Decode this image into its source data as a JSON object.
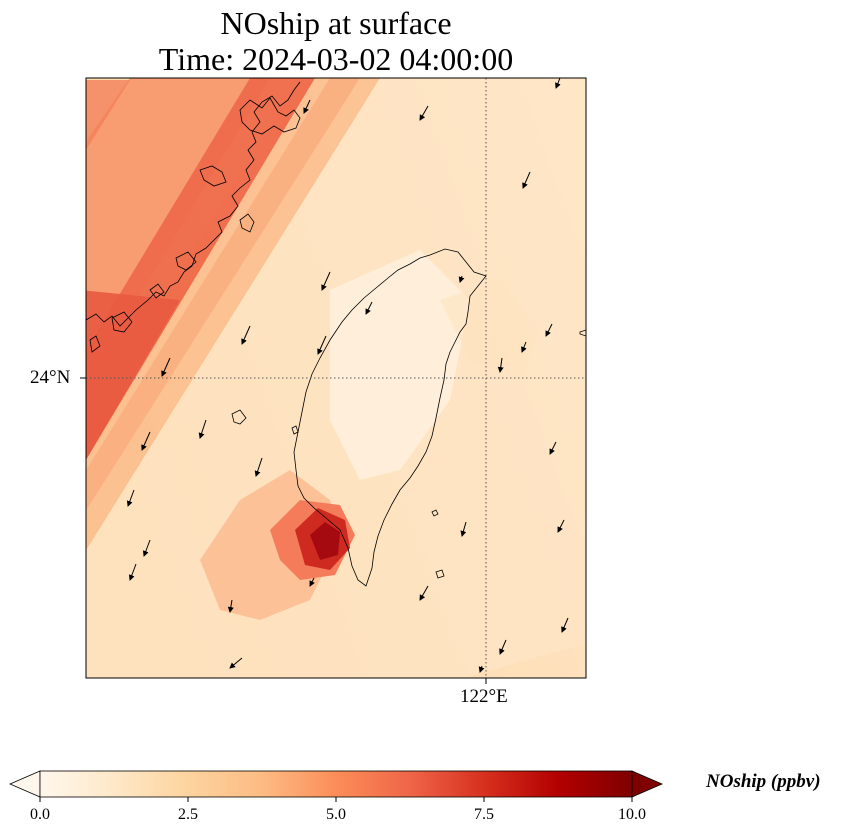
{
  "title": {
    "line1": "NOship at surface",
    "line2": "Time: 2024-03-02 04:00:00"
  },
  "map": {
    "lat_tick_label": "24°N",
    "lon_tick_label": "122°E",
    "gridlines": "dotted",
    "field": "NOship",
    "hotspot_value": 9.5,
    "wind_vectors": "shown"
  },
  "colorbar": {
    "label": "NOship (ppbv)",
    "min": 0.0,
    "max": 10.0,
    "extend": "both",
    "colormap": "OrRd",
    "ticks": [
      "0.0",
      "2.5",
      "5.0",
      "7.5",
      "10.0"
    ],
    "colors": [
      "#fff7ec",
      "#fee8c8",
      "#fdd49e",
      "#fdbb84",
      "#fc8d59",
      "#ef6548",
      "#d7301f",
      "#b30000",
      "#7f0000"
    ]
  }
}
